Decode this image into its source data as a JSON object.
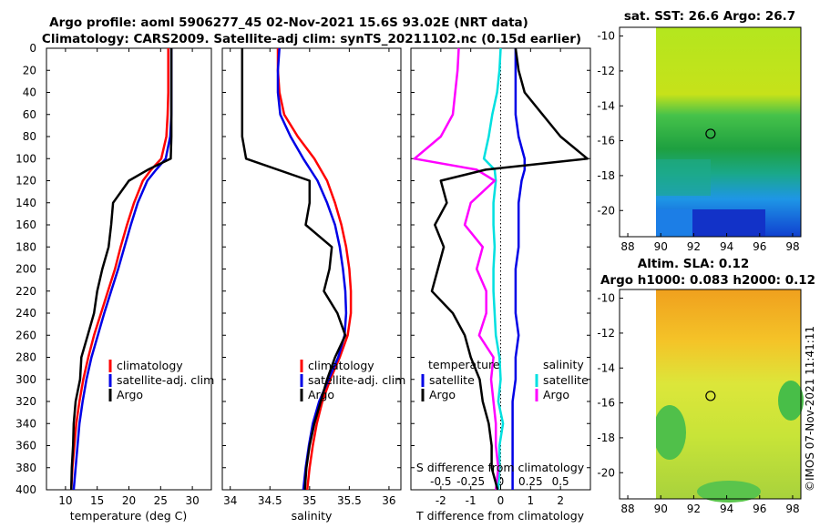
{
  "header": {
    "title_line1": "Argo profile: aoml 5906277_45 02-Nov-2021 15.6S 93.02E (NRT data)",
    "title_line2": "Climatology: CARS2009. Satellite-adj clim: synTS_20211102.nc (0.15d earlier)"
  },
  "watermark": "©IMOS 07-Nov-2021 11:41:11",
  "colors": {
    "climatology": "#ff0000",
    "satellite": "#0000e6",
    "argo": "#000000",
    "t_argo": "#ff00ff",
    "s_satellite": "#00e0e0",
    "s_argo": "#ff00ff"
  },
  "shared_axis": {
    "ylim": [
      400,
      0
    ],
    "yticks": [
      "0",
      "20",
      "40",
      "60",
      "80",
      "100",
      "120",
      "140",
      "160",
      "180",
      "200",
      "220",
      "240",
      "260",
      "280",
      "300",
      "320",
      "340",
      "360",
      "380",
      "400"
    ]
  },
  "legend_profiles": {
    "climatology": "climatology",
    "satellite_adj": "satellite-adj. clim",
    "argo": "Argo"
  },
  "legend_diff": {
    "t_heading": "temperature",
    "s_heading": "salinity",
    "satellite": "satellite",
    "argo": "Argo"
  },
  "maps": {
    "sst_title": "sat. SST: 26.6 Argo: 26.7",
    "sla_title1": "Altim. SLA: 0.12",
    "sla_title2": "Argo h1000: 0.083 h2000: 0.12",
    "xticks": [
      "88",
      "90",
      "92",
      "94",
      "96",
      "98"
    ],
    "yticks": [
      "-10",
      "-12",
      "-14",
      "-16",
      "-18",
      "-20"
    ],
    "xlim": [
      87.5,
      98.5
    ],
    "ylim": [
      -21.5,
      -9.5
    ],
    "marker": {
      "lon": 93.02,
      "lat": -15.6
    }
  },
  "chart_data": [
    {
      "type": "line",
      "title": "",
      "xlabel": "temperature (deg C)",
      "ylabel": "",
      "xlim": [
        7,
        33
      ],
      "ylim": [
        400,
        0
      ],
      "xticks": [
        "10",
        "15",
        "20",
        "25",
        "30"
      ],
      "y": [
        0,
        20,
        40,
        60,
        80,
        100,
        110,
        120,
        140,
        160,
        180,
        200,
        220,
        240,
        260,
        280,
        300,
        320,
        340,
        360,
        380,
        400
      ],
      "series": [
        {
          "name": "climatology",
          "values": [
            26.2,
            26.2,
            26.2,
            26.1,
            25.9,
            25.1,
            23.5,
            22.2,
            20.8,
            19.7,
            18.7,
            17.8,
            16.7,
            15.6,
            14.5,
            13.6,
            12.8,
            12.2,
            11.7,
            11.4,
            11.1,
            10.9
          ]
        },
        {
          "name": "satellite-adj. clim",
          "values": [
            26.7,
            26.7,
            26.7,
            26.7,
            26.5,
            25.8,
            24.3,
            22.9,
            21.4,
            20.3,
            19.3,
            18.3,
            17.2,
            16.1,
            15.1,
            14.1,
            13.3,
            12.7,
            12.2,
            11.9,
            11.6,
            11.3
          ]
        },
        {
          "name": "Argo",
          "values": [
            26.7,
            26.7,
            26.7,
            26.7,
            26.7,
            26.6,
            23.0,
            20.0,
            17.5,
            17.2,
            16.8,
            15.8,
            15.0,
            14.5,
            13.5,
            12.5,
            12.3,
            11.6,
            11.3,
            11.2,
            11.0,
            10.9
          ]
        }
      ]
    },
    {
      "type": "line",
      "title": "",
      "xlabel": "salinity",
      "ylabel": "",
      "xlim": [
        33.9,
        36.15
      ],
      "ylim": [
        400,
        0
      ],
      "xticks": [
        "34",
        "34.5",
        "35",
        "35.5",
        "36"
      ],
      "y": [
        0,
        20,
        40,
        60,
        80,
        100,
        120,
        140,
        160,
        180,
        200,
        220,
        240,
        260,
        280,
        300,
        320,
        340,
        360,
        380,
        400
      ],
      "series": [
        {
          "name": "climatology",
          "values": [
            34.6,
            34.6,
            34.62,
            34.68,
            34.85,
            35.06,
            35.22,
            35.32,
            35.4,
            35.46,
            35.5,
            35.52,
            35.52,
            35.48,
            35.38,
            35.26,
            35.16,
            35.09,
            35.04,
            35.0,
            34.97
          ]
        },
        {
          "name": "satellite-adj. clim",
          "values": [
            34.62,
            34.6,
            34.6,
            34.63,
            34.76,
            34.92,
            35.1,
            35.22,
            35.32,
            35.38,
            35.42,
            35.45,
            35.46,
            35.44,
            35.36,
            35.24,
            35.12,
            35.04,
            34.99,
            34.95,
            34.92
          ]
        },
        {
          "name": "Argo",
          "values": [
            34.15,
            34.15,
            34.15,
            34.15,
            34.15,
            34.2,
            35.0,
            35.0,
            34.95,
            35.28,
            35.25,
            35.18,
            35.35,
            35.45,
            35.32,
            35.22,
            35.14,
            35.06,
            35.0,
            34.96,
            34.94
          ]
        }
      ]
    },
    {
      "type": "line",
      "title": "",
      "xlabel": "T difference from climatology",
      "ylabel": "",
      "xlim": [
        -3.0,
        3.0
      ],
      "ylim": [
        400,
        0
      ],
      "xticks": [
        "-2",
        "-1",
        "0",
        "1",
        "2"
      ],
      "secondary_xlabel": "S difference from climatology",
      "secondary_xticks": [
        "-0.5",
        "-0.25",
        "0",
        "0.25",
        "0.5"
      ],
      "secondary_xlim": [
        -0.75,
        0.75
      ],
      "zero_line": "dotted",
      "y": [
        0,
        20,
        40,
        60,
        80,
        100,
        110,
        120,
        140,
        160,
        180,
        200,
        220,
        240,
        260,
        280,
        300,
        320,
        340,
        360,
        380,
        400
      ],
      "series": [
        {
          "name": "temperature satellite",
          "axis": "T",
          "values": [
            0.5,
            0.5,
            0.5,
            0.5,
            0.6,
            0.8,
            0.8,
            0.7,
            0.6,
            0.6,
            0.6,
            0.5,
            0.5,
            0.5,
            0.6,
            0.5,
            0.5,
            0.4,
            0.4,
            0.4,
            0.4,
            0.4
          ]
        },
        {
          "name": "temperature Argo",
          "axis": "T",
          "values": [
            0.5,
            0.6,
            0.8,
            1.4,
            2.0,
            2.9,
            -0.5,
            -2.0,
            -1.8,
            -2.2,
            -1.9,
            -2.1,
            -2.3,
            -1.6,
            -1.2,
            -1.0,
            -0.7,
            -0.6,
            -0.4,
            -0.3,
            -0.3,
            -0.1
          ]
        },
        {
          "name": "salinity satellite",
          "axis": "S",
          "values": [
            0.0,
            -0.01,
            -0.03,
            -0.07,
            -0.1,
            -0.14,
            -0.05,
            -0.04,
            -0.06,
            -0.06,
            -0.05,
            -0.06,
            -0.06,
            -0.05,
            -0.04,
            -0.01,
            0.0,
            -0.02,
            0.02,
            -0.01,
            -0.01,
            -0.02
          ]
        },
        {
          "name": "salinity Argo",
          "axis": "S",
          "values": [
            -0.35,
            -0.36,
            -0.38,
            -0.4,
            -0.5,
            -0.72,
            -0.2,
            -0.05,
            -0.25,
            -0.3,
            -0.15,
            -0.2,
            -0.12,
            -0.12,
            -0.18,
            -0.06,
            -0.08,
            -0.06,
            -0.04,
            -0.04,
            -0.02,
            -0.04
          ]
        }
      ]
    }
  ]
}
